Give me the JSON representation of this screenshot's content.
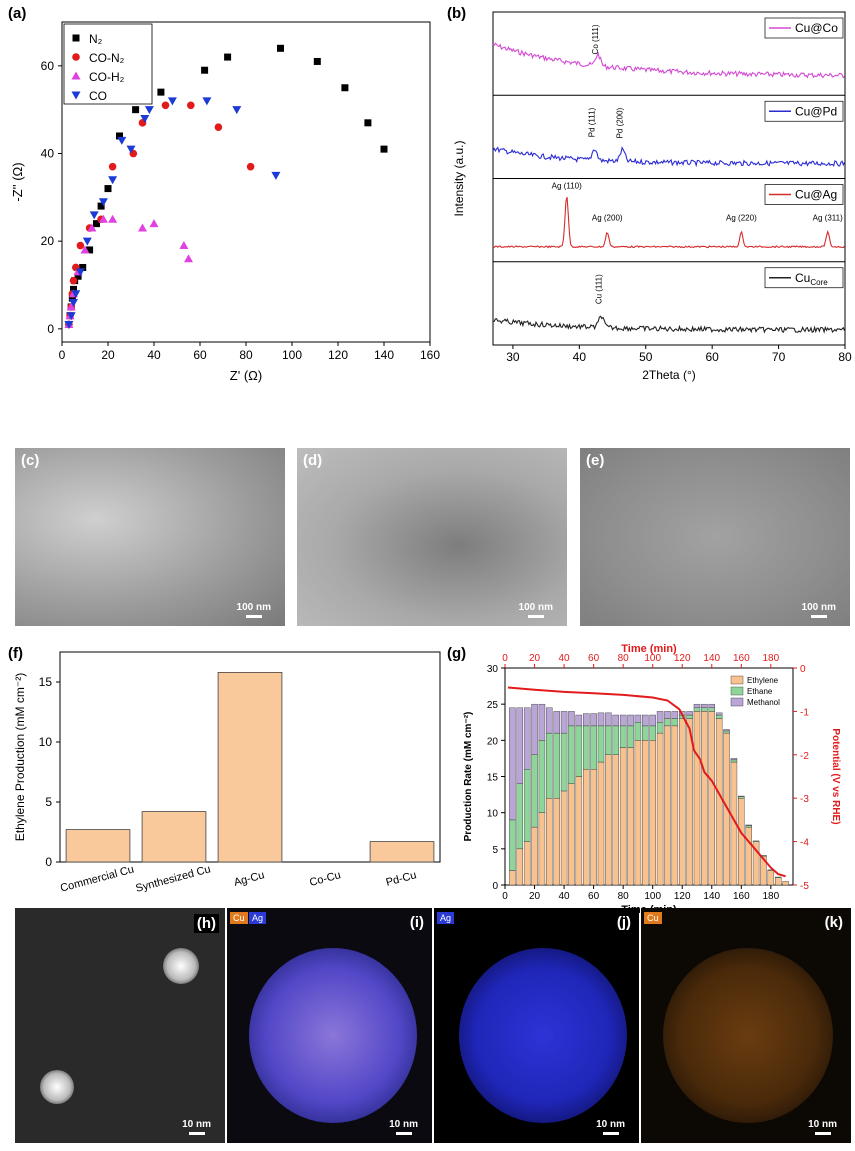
{
  "labels": {
    "a": "(a)",
    "b": "(b)",
    "c": "(c)",
    "d": "(d)",
    "e": "(e)",
    "f": "(f)",
    "g": "(g)",
    "h": "(h)",
    "i": "(i)",
    "j": "(j)",
    "k": "(k)"
  },
  "scalebars": {
    "c": "100 nm",
    "d": "100 nm",
    "e": "100 nm",
    "h": "10 nm",
    "i": "10 nm",
    "j": "10 nm",
    "k": "10 nm"
  },
  "eds_tags": {
    "cu": "Cu",
    "ag": "Ag"
  },
  "colors": {
    "bar_f": "#f9c89b",
    "ethylene": "#f7c28f",
    "ethane": "#8fd49a",
    "methanol": "#b9a6d6",
    "potential": "#e31a1c",
    "cuco": "#d34ad3",
    "cupd": "#2b2bd6",
    "cuag": "#d62b2b",
    "cucore": "#222222"
  },
  "chart_data": [
    {
      "id": "a",
      "type": "scatter",
      "xlabel": "Z' (Ω)",
      "ylabel": "-Z'' (Ω)",
      "xlim": [
        0,
        160
      ],
      "ylim": [
        -3,
        70
      ],
      "xticks": [
        0,
        20,
        40,
        60,
        80,
        100,
        120,
        140,
        160
      ],
      "yticks": [
        0,
        20,
        40,
        60
      ],
      "legend_position": "top-left",
      "series": [
        {
          "name": "N₂",
          "marker": "square",
          "color": "#000000",
          "points": [
            [
              3,
              1
            ],
            [
              3.5,
              3
            ],
            [
              4,
              5
            ],
            [
              4.5,
              7
            ],
            [
              5,
              9
            ],
            [
              5.5,
              11
            ],
            [
              7,
              12
            ],
            [
              9,
              14
            ],
            [
              12,
              18
            ],
            [
              15,
              24
            ],
            [
              17,
              28
            ],
            [
              20,
              32
            ],
            [
              25,
              44
            ],
            [
              32,
              50
            ],
            [
              43,
              54
            ],
            [
              62,
              59
            ],
            [
              72,
              62
            ],
            [
              95,
              64
            ],
            [
              111,
              61
            ],
            [
              123,
              55
            ],
            [
              133,
              47
            ],
            [
              140,
              41
            ]
          ]
        },
        {
          "name": "CO-N₂",
          "marker": "circle",
          "color": "#e31a1c",
          "points": [
            [
              3,
              1
            ],
            [
              3.5,
              3
            ],
            [
              4,
              5
            ],
            [
              4.5,
              8
            ],
            [
              5,
              11
            ],
            [
              6,
              14
            ],
            [
              8,
              19
            ],
            [
              12,
              23
            ],
            [
              17,
              25
            ],
            [
              22,
              37
            ],
            [
              31,
              40
            ],
            [
              35,
              47
            ],
            [
              45,
              51
            ],
            [
              56,
              51
            ],
            [
              68,
              46
            ],
            [
              82,
              37
            ]
          ]
        },
        {
          "name": "CO-H₂",
          "marker": "triangle-up",
          "color": "#e041e0",
          "points": [
            [
              3,
              1
            ],
            [
              3.5,
              3
            ],
            [
              4,
              5
            ],
            [
              5,
              8
            ],
            [
              7,
              13
            ],
            [
              10,
              18
            ],
            [
              13,
              23
            ],
            [
              18,
              25
            ],
            [
              22,
              25
            ],
            [
              35,
              23
            ],
            [
              40,
              24
            ],
            [
              53,
              19
            ],
            [
              55,
              16
            ]
          ]
        },
        {
          "name": "CO",
          "marker": "triangle-down",
          "color": "#1c3ad6",
          "points": [
            [
              3,
              1
            ],
            [
              4,
              3
            ],
            [
              5,
              6
            ],
            [
              6,
              8
            ],
            [
              8,
              13
            ],
            [
              11,
              20
            ],
            [
              14,
              26
            ],
            [
              18,
              29
            ],
            [
              22,
              34
            ],
            [
              26,
              43
            ],
            [
              30,
              41
            ],
            [
              36,
              48
            ],
            [
              38,
              50
            ],
            [
              48,
              52
            ],
            [
              63,
              52
            ],
            [
              76,
              50
            ],
            [
              93,
              35
            ]
          ]
        }
      ]
    },
    {
      "id": "b",
      "type": "line",
      "xlabel": "2Theta (°)",
      "ylabel": "Intensity (a.u.)",
      "xlim": [
        27,
        80
      ],
      "xticks": [
        30,
        40,
        50,
        60,
        70,
        80
      ],
      "series": [
        {
          "name": "Cu@Co",
          "color": "#d34ad3",
          "peaks": [
            [
              "Co (111)",
              42.8
            ]
          ]
        },
        {
          "name": "Cu@Pd",
          "color": "#2b2bd6",
          "peaks": [
            [
              "Pd (111)",
              42.3
            ],
            [
              "Pd (200)",
              46.5
            ]
          ]
        },
        {
          "name": "Cu@Ag",
          "color": "#d62b2b",
          "peaks": [
            [
              "Ag (110)",
              38.1
            ],
            [
              "Ag (200)",
              44.2
            ],
            [
              "Ag (220)",
              64.4
            ],
            [
              "Ag (311)",
              77.4
            ]
          ]
        },
        {
          "name": "Cu",
          "name_sub": "Core",
          "color": "#222222",
          "peaks": [
            [
              "Cu (111)",
              43.3
            ]
          ]
        }
      ]
    },
    {
      "id": "f",
      "type": "bar",
      "ylabel": "Ethylene Production (mM cm⁻²)",
      "ylim": [
        0,
        17.5
      ],
      "yticks": [
        0,
        5,
        10,
        15
      ],
      "categories": [
        "Commercial Cu",
        "Synthesized Cu",
        "Ag-Cu",
        "Co-Cu",
        "Pd-Cu"
      ],
      "values": [
        2.7,
        4.2,
        15.8,
        0,
        1.7
      ]
    },
    {
      "id": "g",
      "type": "bar",
      "stacked": true,
      "xlabel": "Time (min)",
      "x2label": "Time (min)",
      "ylabel": "Production Rate (mM cm⁻²)",
      "y2label": "Potential (V vs RHE)",
      "xlim": [
        0,
        195
      ],
      "xticks": [
        0,
        20,
        40,
        60,
        80,
        100,
        120,
        140,
        160,
        180
      ],
      "x2ticks": [
        0,
        20,
        40,
        60,
        80,
        100,
        120,
        140,
        160,
        180
      ],
      "ylim": [
        0,
        30
      ],
      "yticks": [
        0,
        5,
        10,
        15,
        20,
        25,
        30
      ],
      "y2lim": [
        -5,
        0
      ],
      "y2ticks": [
        0,
        -1,
        -2,
        -3,
        -4,
        -5
      ],
      "legend_position": "top-right",
      "x": [
        5,
        10,
        15,
        20,
        25,
        30,
        35,
        40,
        45,
        50,
        55,
        60,
        65,
        70,
        75,
        80,
        85,
        90,
        95,
        100,
        105,
        110,
        115,
        120,
        125,
        130,
        135,
        140,
        145,
        150,
        155,
        160,
        165,
        170,
        175,
        180,
        185,
        190
      ],
      "series": [
        {
          "name": "Ethylene",
          "color": "#f7c28f",
          "values": [
            2,
            5,
            6,
            8,
            10,
            12,
            12,
            13,
            14,
            15,
            16,
            16,
            17,
            18,
            18,
            19,
            19,
            20,
            20,
            20,
            21,
            22,
            22,
            23,
            23,
            24,
            24,
            24,
            23,
            21,
            17,
            12,
            8,
            6,
            4,
            2,
            1,
            0.5
          ]
        },
        {
          "name": "Ethane",
          "color": "#8fd49a",
          "values": [
            7,
            9,
            10,
            10,
            10,
            9,
            9,
            8,
            8,
            7,
            6,
            6,
            5,
            4,
            4,
            3,
            3,
            2.5,
            2,
            2,
            1.5,
            1,
            1,
            0.5,
            0.5,
            0.5,
            0.5,
            0.5,
            0.5,
            0.3,
            0.3,
            0.2,
            0.2,
            0.1,
            0.1,
            0.1,
            0.1,
            0
          ]
        },
        {
          "name": "Methanol",
          "color": "#b9a6d6",
          "values": [
            15.5,
            10.5,
            8.5,
            7,
            5,
            3.5,
            3,
            3,
            2,
            1.5,
            1.7,
            1.7,
            1.8,
            1.8,
            1.5,
            1.5,
            1.5,
            1,
            1.5,
            1.5,
            1.5,
            1,
            1,
            0.5,
            0.5,
            0.5,
            0.5,
            0.5,
            0.3,
            0.2,
            0.2,
            0.1,
            0.1,
            0,
            0,
            0,
            0,
            0
          ]
        }
      ],
      "potential": {
        "name": "Potential",
        "color": "#e31a1c",
        "points": [
          [
            2,
            -0.45
          ],
          [
            20,
            -0.5
          ],
          [
            40,
            -0.55
          ],
          [
            60,
            -0.58
          ],
          [
            80,
            -0.62
          ],
          [
            100,
            -0.68
          ],
          [
            110,
            -0.75
          ],
          [
            118,
            -0.95
          ],
          [
            125,
            -1.4
          ],
          [
            128,
            -1.9
          ],
          [
            132,
            -2.1
          ],
          [
            135,
            -2.4
          ],
          [
            140,
            -2.6
          ],
          [
            145,
            -2.9
          ],
          [
            150,
            -3.2
          ],
          [
            155,
            -3.5
          ],
          [
            160,
            -3.8
          ],
          [
            165,
            -4.0
          ],
          [
            170,
            -4.2
          ],
          [
            175,
            -4.4
          ],
          [
            180,
            -4.6
          ],
          [
            185,
            -4.75
          ],
          [
            190,
            -4.8
          ]
        ]
      }
    }
  ]
}
